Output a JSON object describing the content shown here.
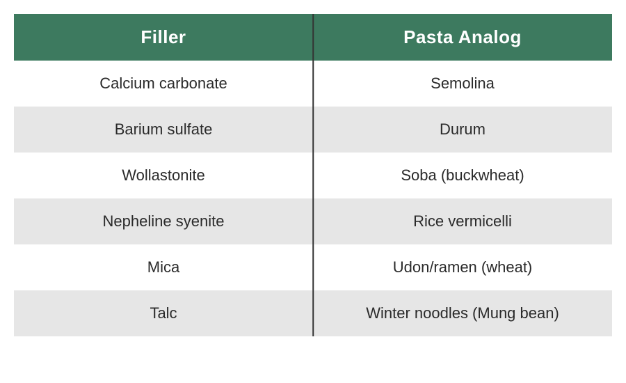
{
  "table": {
    "header_bg": "#3d7a5f",
    "header_text_color": "#ffffff",
    "row_alt_bg": "#e6e6e6",
    "row_bg": "#ffffff",
    "cell_text_color": "#2a2a2a",
    "divider_color": "#333333",
    "columns": [
      {
        "label": "Filler"
      },
      {
        "label": "Pasta Analog"
      }
    ],
    "rows": [
      {
        "filler": "Calcium carbonate",
        "analog": "Semolina"
      },
      {
        "filler": "Barium sulfate",
        "analog": "Durum"
      },
      {
        "filler": "Wollastonite",
        "analog": "Soba (buckwheat)"
      },
      {
        "filler": "Nepheline syenite",
        "analog": "Rice vermicelli"
      },
      {
        "filler": "Mica",
        "analog": "Udon/ramen (wheat)"
      },
      {
        "filler": "Talc",
        "analog": "Winter noodles (Mung bean)"
      }
    ]
  }
}
